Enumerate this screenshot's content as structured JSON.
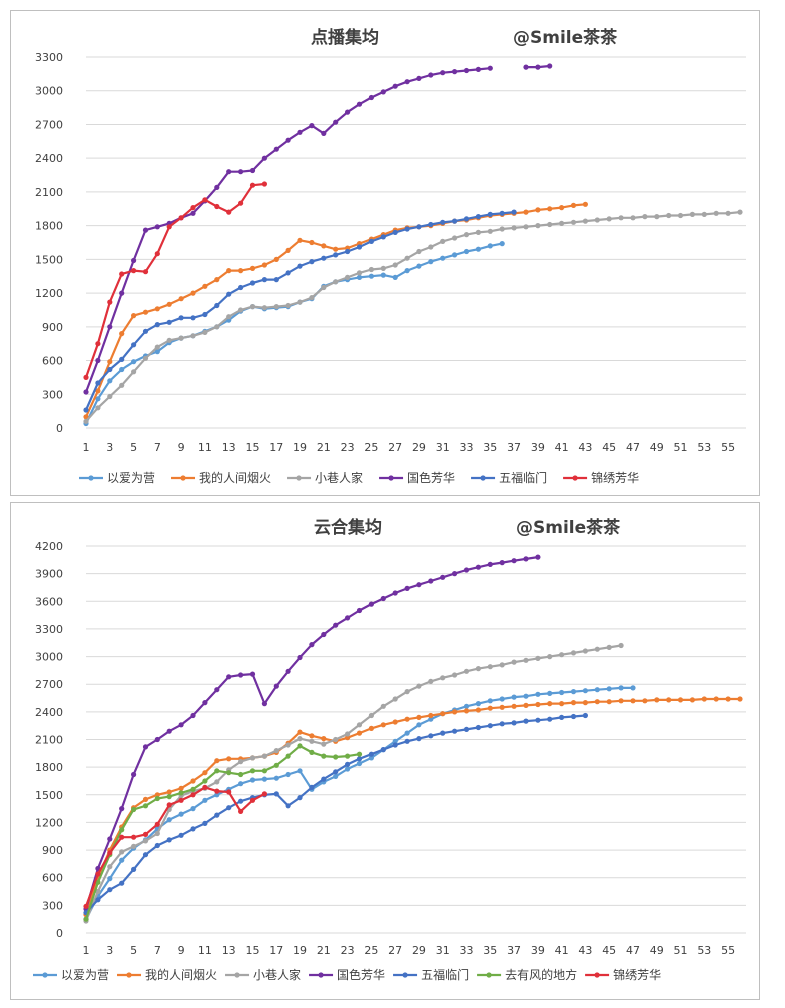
{
  "chart_data": [
    {
      "type": "line",
      "title": "点播集均",
      "watermark": "@Smile茶茶",
      "ylim": [
        0,
        3300
      ],
      "yticks": [
        0,
        300,
        600,
        900,
        1200,
        1500,
        1800,
        2100,
        2400,
        2700,
        3000,
        3300
      ],
      "xlim": [
        1,
        56
      ],
      "xticks": [
        1,
        3,
        5,
        7,
        9,
        11,
        13,
        15,
        17,
        19,
        21,
        23,
        25,
        27,
        29,
        31,
        33,
        35,
        37,
        39,
        41,
        43,
        45,
        47,
        49,
        51,
        53,
        55
      ],
      "grid": true,
      "legend_position": "bottom",
      "series": [
        {
          "name": "以爱为营",
          "color": "#5b9bd5",
          "values": [
            40,
            260,
            420,
            520,
            590,
            640,
            680,
            760,
            800,
            820,
            860,
            900,
            960,
            1040,
            1080,
            1060,
            1070,
            1080,
            1120,
            1150,
            1260,
            1300,
            1320,
            1340,
            1350,
            1360,
            1340,
            1400,
            1440,
            1480,
            1510,
            1540,
            1570,
            1590,
            1620,
            1640
          ]
        },
        {
          "name": "我的人间烟火",
          "color": "#ed7d31",
          "values": [
            100,
            330,
            590,
            840,
            1000,
            1030,
            1060,
            1100,
            1150,
            1200,
            1260,
            1320,
            1400,
            1400,
            1420,
            1450,
            1500,
            1580,
            1670,
            1650,
            1620,
            1590,
            1600,
            1640,
            1680,
            1720,
            1760,
            1780,
            1790,
            1800,
            1820,
            1840,
            1850,
            1870,
            1890,
            1900,
            1910,
            1920,
            1940,
            1950,
            1960,
            1980,
            1990
          ]
        },
        {
          "name": "小巷人家",
          "color": "#a5a5a5",
          "values": [
            60,
            180,
            280,
            380,
            500,
            620,
            720,
            780,
            800,
            820,
            850,
            900,
            990,
            1050,
            1080,
            1070,
            1080,
            1090,
            1120,
            1160,
            1250,
            1300,
            1340,
            1380,
            1410,
            1420,
            1450,
            1510,
            1570,
            1610,
            1660,
            1690,
            1720,
            1740,
            1750,
            1770,
            1780,
            1790,
            1800,
            1810,
            1820,
            1830,
            1840,
            1850,
            1860,
            1870,
            1870,
            1880,
            1880,
            1890,
            1890,
            1900,
            1900,
            1910,
            1910,
            1920
          ]
        },
        {
          "name": "国色芳华",
          "color": "#7030a0",
          "values": [
            320,
            600,
            900,
            1200,
            1490,
            1760,
            1790,
            1820,
            1870,
            1910,
            2020,
            2140,
            2280,
            2280,
            2290,
            2400,
            2480,
            2560,
            2630,
            2690,
            2620,
            2720,
            2810,
            2880,
            2940,
            2990,
            3040,
            3080,
            3110,
            3140,
            3160,
            3170,
            3180,
            3190,
            3200,
            null,
            null,
            3210,
            3210,
            3220
          ]
        },
        {
          "name": "五福临门",
          "color": "#4472c4",
          "values": [
            160,
            400,
            520,
            610,
            740,
            860,
            920,
            940,
            980,
            980,
            1010,
            1090,
            1190,
            1250,
            1290,
            1320,
            1320,
            1380,
            1440,
            1480,
            1510,
            1540,
            1570,
            1610,
            1660,
            1700,
            1740,
            1770,
            1790,
            1810,
            1830,
            1840,
            1860,
            1880,
            1900,
            1910,
            1920
          ]
        },
        {
          "name": "锦绣芳华",
          "color": "#e0303a",
          "values": [
            450,
            750,
            1120,
            1370,
            1400,
            1390,
            1550,
            1790,
            1870,
            1960,
            2030,
            1970,
            1920,
            2000,
            2160,
            2170
          ]
        }
      ]
    },
    {
      "type": "line",
      "title": "云合集均",
      "watermark": "@Smile茶茶",
      "ylim": [
        0,
        4200
      ],
      "yticks": [
        0,
        300,
        600,
        900,
        1200,
        1500,
        1800,
        2100,
        2400,
        2700,
        3000,
        3300,
        3600,
        3900,
        4200
      ],
      "xlim": [
        1,
        56
      ],
      "xticks": [
        1,
        3,
        5,
        7,
        9,
        11,
        13,
        15,
        17,
        19,
        21,
        23,
        25,
        27,
        29,
        31,
        33,
        35,
        37,
        39,
        41,
        43,
        45,
        47,
        49,
        51,
        53,
        55
      ],
      "grid": true,
      "legend_position": "bottom",
      "series": [
        {
          "name": "以爱为营",
          "color": "#5b9bd5",
          "values": [
            150,
            400,
            590,
            790,
            920,
            1010,
            1130,
            1230,
            1290,
            1350,
            1440,
            1500,
            1560,
            1620,
            1660,
            1670,
            1680,
            1720,
            1760,
            1560,
            1640,
            1700,
            1780,
            1840,
            1900,
            1990,
            2080,
            2170,
            2260,
            2320,
            2380,
            2420,
            2460,
            2490,
            2520,
            2540,
            2560,
            2570,
            2590,
            2600,
            2610,
            2620,
            2630,
            2640,
            2650,
            2660,
            2660
          ]
        },
        {
          "name": "我的人间烟火",
          "color": "#ed7d31",
          "values": [
            200,
            600,
            900,
            1150,
            1360,
            1450,
            1500,
            1530,
            1570,
            1650,
            1740,
            1870,
            1890,
            1890,
            1900,
            1920,
            1960,
            2060,
            2180,
            2140,
            2110,
            2080,
            2120,
            2170,
            2220,
            2260,
            2290,
            2320,
            2340,
            2360,
            2380,
            2400,
            2410,
            2420,
            2440,
            2450,
            2460,
            2470,
            2480,
            2490,
            2490,
            2500,
            2500,
            2510,
            2510,
            2520,
            2520,
            2520,
            2530,
            2530,
            2530,
            2530,
            2540,
            2540,
            2540,
            2540
          ]
        },
        {
          "name": "小巷人家",
          "color": "#a5a5a5",
          "values": [
            130,
            450,
            720,
            880,
            940,
            1000,
            1080,
            1340,
            1490,
            1540,
            1570,
            1640,
            1770,
            1860,
            1900,
            1920,
            1980,
            2040,
            2110,
            2080,
            2050,
            2100,
            2160,
            2260,
            2360,
            2460,
            2540,
            2620,
            2680,
            2730,
            2770,
            2800,
            2840,
            2870,
            2890,
            2910,
            2940,
            2960,
            2980,
            3000,
            3020,
            3040,
            3060,
            3080,
            3100,
            3120
          ]
        },
        {
          "name": "国色芳华",
          "color": "#7030a0",
          "values": [
            260,
            700,
            1020,
            1350,
            1720,
            2020,
            2100,
            2190,
            2260,
            2360,
            2500,
            2640,
            2780,
            2800,
            2810,
            2490,
            2680,
            2840,
            2990,
            3130,
            3240,
            3340,
            3420,
            3500,
            3570,
            3630,
            3690,
            3740,
            3780,
            3820,
            3860,
            3900,
            3940,
            3970,
            4000,
            4020,
            4040,
            4060,
            4080
          ]
        },
        {
          "name": "五福临门",
          "color": "#4472c4",
          "values": [
            220,
            360,
            470,
            540,
            690,
            850,
            950,
            1010,
            1060,
            1130,
            1190,
            1280,
            1360,
            1430,
            1470,
            1500,
            1510,
            1380,
            1470,
            1580,
            1670,
            1750,
            1830,
            1890,
            1940,
            1990,
            2040,
            2080,
            2110,
            2140,
            2170,
            2190,
            2210,
            2230,
            2250,
            2270,
            2280,
            2300,
            2310,
            2320,
            2340,
            2350,
            2360
          ]
        },
        {
          "name": "去有风的地方",
          "color": "#70ad47",
          "values": [
            150,
            550,
            850,
            1120,
            1340,
            1380,
            1460,
            1480,
            1520,
            1560,
            1650,
            1760,
            1740,
            1720,
            1760,
            1760,
            1820,
            1920,
            2030,
            1960,
            1920,
            1910,
            1920,
            1940
          ]
        },
        {
          "name": "锦绣芳华",
          "color": "#e0303a",
          "values": [
            290,
            640,
            870,
            1040,
            1040,
            1070,
            1180,
            1390,
            1440,
            1500,
            1580,
            1540,
            1530,
            1320,
            1440,
            1510
          ]
        }
      ]
    }
  ]
}
